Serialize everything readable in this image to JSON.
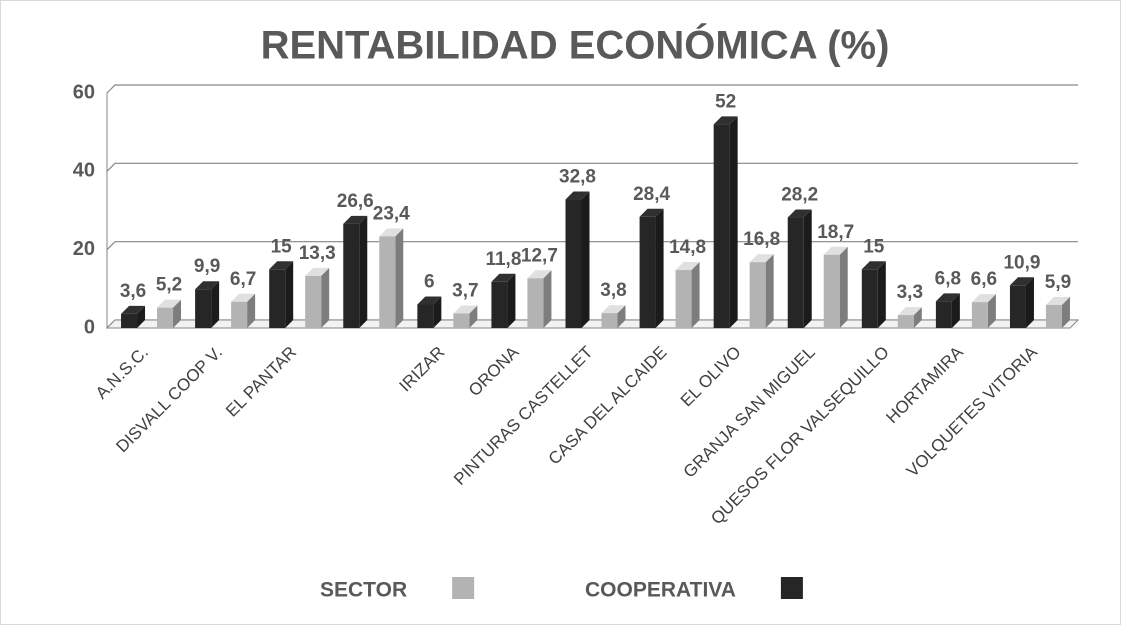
{
  "chart_data": {
    "type": "bar",
    "title": "RENTABILIDAD ECONÓMICA (%)",
    "categories": [
      "A.N.S.C.",
      "DISVALL COOP V.",
      "EL PANTAR",
      null,
      "IRIZAR",
      "ORONA",
      "PINTURAS CASTELLET",
      "CASA DEL ALCAIDE",
      "EL OLIVO",
      "GRANJA SAN MIGUEL",
      "QUESOS FLOR VALSEQUILLO",
      "HORTAMIRA",
      "VOLQUETES VITORIA"
    ],
    "series": [
      {
        "name": "SECTOR",
        "color": "#b3b3b3",
        "values": [
          5.2,
          6.7,
          13.3,
          23.4,
          3.7,
          12.7,
          3.8,
          14.8,
          16.8,
          18.7,
          3.3,
          6.6,
          5.9
        ],
        "value_labels": [
          "5,2",
          "6,7",
          "13,3",
          "23,4",
          "3,7",
          "12,7",
          "3,8",
          "14,8",
          "16,8",
          "18,7",
          "3,3",
          "6,6",
          "5,9"
        ]
      },
      {
        "name": "COOPERATIVA",
        "color": "#262626",
        "values": [
          3.6,
          9.9,
          15,
          26.6,
          6,
          11.8,
          32.8,
          28.4,
          52,
          28.2,
          15,
          6.8,
          10.9
        ],
        "value_labels": [
          "3,6",
          "9,9",
          "15",
          "26,6",
          "6",
          "11,8",
          "32,8",
          "28,4",
          "52",
          "28,2",
          "15",
          "6,8",
          "10,9"
        ]
      }
    ],
    "ylim": [
      0,
      60
    ],
    "yticks": [
      0,
      20,
      40,
      60
    ],
    "grid": true,
    "legend": "bottom"
  }
}
